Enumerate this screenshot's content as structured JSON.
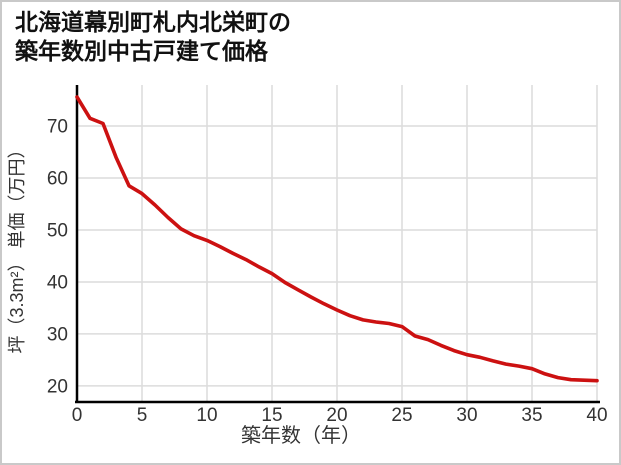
{
  "title": {
    "line1": "北海道幕別町札内北栄町の",
    "line2": "築年数別中古戸建て価格"
  },
  "chart_data": {
    "type": "line",
    "title": "北海道幕別町札内北栄町の築年数別中古戸建て価格",
    "xlabel": "築年数（年）",
    "ylabel": "坪（3.3m²） 単価（万円）",
    "x": [
      0,
      1,
      2,
      3,
      4,
      5,
      6,
      7,
      8,
      9,
      10,
      11,
      12,
      13,
      14,
      15,
      16,
      17,
      18,
      19,
      20,
      21,
      22,
      23,
      24,
      25,
      26,
      27,
      28,
      29,
      30,
      31,
      32,
      33,
      34,
      35,
      36,
      37,
      38,
      39,
      40
    ],
    "values": [
      75.6,
      71.5,
      70.5,
      64.0,
      58.5,
      57.0,
      54.8,
      52.4,
      50.2,
      48.9,
      48.0,
      46.8,
      45.5,
      44.3,
      42.9,
      41.6,
      39.9,
      38.5,
      37.1,
      35.8,
      34.6,
      33.5,
      32.7,
      32.3,
      32.0,
      31.4,
      29.6,
      28.9,
      27.8,
      26.8,
      26.0,
      25.5,
      24.8,
      24.2,
      23.8,
      23.3,
      22.3,
      21.6,
      21.2,
      21.1,
      21.0
    ],
    "xticks": [
      0,
      5,
      10,
      15,
      20,
      25,
      30,
      35,
      40
    ],
    "yticks": [
      20,
      30,
      40,
      50,
      60,
      70
    ],
    "xlim": [
      0,
      40
    ],
    "ylim": [
      16.9,
      77.9
    ],
    "grid": true,
    "legend": false,
    "line_color": "#cc1111",
    "axis_color": "#000000",
    "grid_color": "#dcdcdc",
    "tick_label_color": "#333333",
    "axis_title_color": "#333333"
  }
}
